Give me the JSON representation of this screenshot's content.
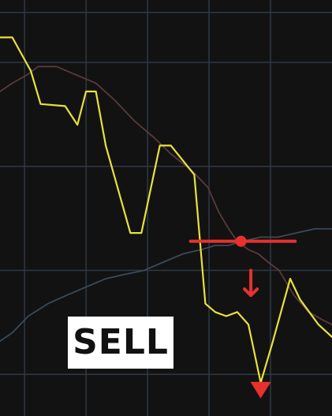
{
  "chart_data": {
    "type": "line",
    "xlim": [
      0,
      27
    ],
    "ylim": [
      0,
      100
    ],
    "grid": true,
    "series": [
      {
        "role": "price",
        "color": "#e8e23a",
        "points": [
          [
            0,
            91
          ],
          [
            1,
            91
          ],
          [
            2.5,
            83
          ],
          [
            3.3,
            75
          ],
          [
            5.3,
            74.5
          ],
          [
            6.3,
            70
          ],
          [
            7,
            78
          ],
          [
            7.8,
            78
          ],
          [
            8.6,
            65
          ],
          [
            10.6,
            44
          ],
          [
            11.5,
            44
          ],
          [
            13,
            65
          ],
          [
            13.9,
            65
          ],
          [
            15.8,
            58
          ],
          [
            16.7,
            27
          ],
          [
            17.5,
            25
          ],
          [
            18.4,
            24
          ],
          [
            19.3,
            25
          ],
          [
            20.2,
            22
          ],
          [
            21.2,
            8
          ],
          [
            22.1,
            17
          ],
          [
            23.6,
            33
          ],
          [
            24.4,
            28
          ],
          [
            25.9,
            22
          ],
          [
            27,
            19
          ]
        ]
      },
      {
        "role": "moving-average",
        "color": "#5a3a3a",
        "points": [
          [
            0,
            78
          ],
          [
            1,
            80
          ],
          [
            2.2,
            82
          ],
          [
            3.1,
            84
          ],
          [
            4.6,
            84
          ],
          [
            6.2,
            82
          ],
          [
            7.8,
            80
          ],
          [
            9.3,
            76
          ],
          [
            10.9,
            71
          ],
          [
            12.5,
            67
          ],
          [
            13.9,
            63
          ],
          [
            15.6,
            59
          ],
          [
            16.9,
            55
          ],
          [
            17.8,
            49
          ],
          [
            18.6,
            45
          ],
          [
            19.3,
            42
          ],
          [
            20.2,
            40
          ],
          [
            21,
            39
          ],
          [
            21.8,
            37
          ],
          [
            22.7,
            35
          ],
          [
            23.9,
            29
          ],
          [
            25.1,
            25
          ],
          [
            26.3,
            23
          ],
          [
            27,
            22
          ]
        ]
      },
      {
        "role": "lower-band",
        "color": "#3a4a5a",
        "points": [
          [
            0,
            18
          ],
          [
            1,
            20
          ],
          [
            2.3,
            24
          ],
          [
            3.9,
            27
          ],
          [
            5.4,
            29
          ],
          [
            7,
            31
          ],
          [
            8.6,
            33
          ],
          [
            10.1,
            34
          ],
          [
            11.7,
            35
          ],
          [
            13.3,
            37
          ],
          [
            14.9,
            39
          ],
          [
            16.4,
            40
          ],
          [
            17.5,
            41
          ],
          [
            18.6,
            41
          ],
          [
            19.7,
            42
          ],
          [
            21.2,
            43
          ],
          [
            22.6,
            43
          ],
          [
            24.1,
            44
          ],
          [
            25.6,
            45
          ],
          [
            27,
            45
          ]
        ]
      }
    ],
    "annotations": {
      "level_line": {
        "x": [
          15.5,
          24
        ],
        "y": 42,
        "marker_x": 19.6,
        "color": "#e8312e"
      },
      "arrow": {
        "x": 20.4,
        "y_from": 35,
        "y_to": 29,
        "color": "#e8312e"
      },
      "signal_triangle": {
        "x": 21.2,
        "y": 6.5,
        "color": "#e8312e"
      }
    }
  },
  "signal": {
    "label": "SELL"
  },
  "colors": {
    "background": "#121212",
    "grid": "#2f3844"
  }
}
